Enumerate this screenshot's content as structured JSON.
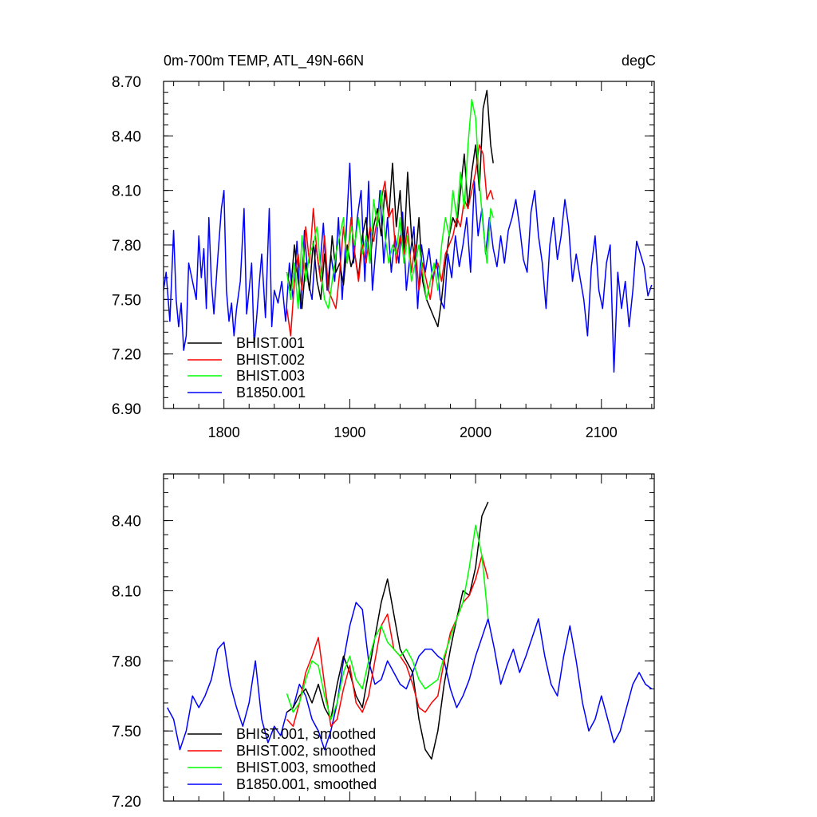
{
  "chart_data": [
    {
      "type": "line",
      "title_left": "0m-700m TEMP, ATL_49N-66N",
      "title_right": "degC",
      "xlim": [
        1752,
        2142
      ],
      "ylim": [
        6.9,
        8.7
      ],
      "x_ticks": [
        1800,
        1900,
        2000,
        2100
      ],
      "x_tick_labels": [
        "1800",
        "1900",
        "2000",
        "2100"
      ],
      "y_ticks": [
        6.9,
        7.2,
        7.5,
        7.8,
        8.1,
        8.4,
        8.7
      ],
      "y_tick_labels": [
        "6.90",
        "7.20",
        "7.50",
        "7.80",
        "8.10",
        "8.40",
        "8.70"
      ],
      "legend_position": "bottom-left",
      "series": [
        {
          "name": "B1850.001",
          "color": "#0000ff",
          "x": [
            1752,
            1754,
            1757,
            1760,
            1762,
            1764,
            1766,
            1768,
            1770,
            1772,
            1775,
            1778,
            1780,
            1782,
            1784,
            1786,
            1788,
            1790,
            1792,
            1795,
            1798,
            1800,
            1802,
            1804,
            1806,
            1808,
            1810,
            1813,
            1816,
            1818,
            1820,
            1822,
            1824,
            1826,
            1828,
            1830,
            1833,
            1836,
            1838,
            1840,
            1843,
            1846,
            1849,
            1852,
            1855,
            1858,
            1861,
            1864,
            1867,
            1870,
            1873,
            1876,
            1879,
            1882,
            1885,
            1888,
            1891,
            1894,
            1897,
            1900,
            1903,
            1906,
            1909,
            1912,
            1915,
            1918,
            1921,
            1924,
            1927,
            1930,
            1933,
            1936,
            1939,
            1942,
            1945,
            1948,
            1951,
            1954,
            1957,
            1960,
            1963,
            1966,
            1969,
            1972,
            1975,
            1978,
            1981,
            1984,
            1987,
            1990,
            1993,
            1996,
            1999,
            2002,
            2005,
            2008,
            2011,
            2014,
            2017,
            2020,
            2023,
            2026,
            2029,
            2032,
            2035,
            2038,
            2041,
            2044,
            2047,
            2050,
            2053,
            2056,
            2059,
            2062,
            2065,
            2068,
            2071,
            2074,
            2077,
            2080,
            2083,
            2086,
            2089,
            2092,
            2095,
            2098,
            2101,
            2104,
            2107,
            2110,
            2113,
            2116,
            2119,
            2122,
            2125,
            2128,
            2131,
            2134,
            2137,
            2140
          ],
          "values": [
            7.55,
            7.65,
            7.38,
            7.88,
            7.5,
            7.35,
            7.48,
            7.22,
            7.3,
            7.7,
            7.6,
            7.5,
            7.85,
            7.62,
            7.78,
            7.45,
            7.95,
            7.6,
            7.42,
            7.72,
            8.0,
            8.1,
            7.55,
            7.38,
            7.48,
            7.3,
            7.45,
            7.6,
            8.0,
            7.42,
            7.55,
            7.7,
            7.25,
            7.4,
            7.58,
            7.75,
            7.4,
            8.0,
            7.35,
            7.55,
            7.48,
            7.6,
            7.38,
            7.7,
            7.5,
            7.82,
            7.45,
            7.88,
            7.6,
            7.5,
            7.8,
            7.65,
            7.92,
            7.55,
            7.75,
            7.6,
            7.95,
            7.5,
            7.85,
            8.25,
            7.7,
            7.95,
            8.1,
            7.6,
            8.15,
            7.55,
            7.8,
            8.1,
            7.7,
            7.95,
            7.65,
            7.85,
            7.7,
            7.98,
            7.55,
            7.75,
            7.9,
            7.45,
            7.8,
            7.65,
            7.78,
            7.6,
            7.72,
            7.5,
            7.45,
            7.75,
            7.62,
            7.85,
            7.68,
            7.8,
            7.95,
            7.65,
            8.15,
            7.85,
            8.0,
            7.75,
            7.95,
            7.78,
            7.68,
            7.85,
            7.7,
            7.88,
            7.95,
            8.05,
            7.9,
            7.72,
            7.65,
            7.98,
            8.1,
            7.85,
            7.7,
            7.45,
            7.8,
            7.95,
            7.72,
            7.85,
            8.05,
            7.9,
            7.6,
            7.75,
            7.62,
            7.5,
            7.3,
            7.68,
            7.85,
            7.55,
            7.45,
            7.7,
            7.8,
            7.1,
            7.65,
            7.45,
            7.6,
            7.35,
            7.55,
            7.82,
            7.75,
            7.68,
            7.52,
            7.58
          ]
        },
        {
          "name": "BHIST.001",
          "color": "#000000",
          "x": [
            1850,
            1853,
            1856,
            1859,
            1862,
            1865,
            1868,
            1871,
            1874,
            1877,
            1880,
            1883,
            1886,
            1889,
            1892,
            1895,
            1898,
            1901,
            1904,
            1907,
            1910,
            1913,
            1916,
            1919,
            1922,
            1925,
            1928,
            1931,
            1934,
            1937,
            1940,
            1943,
            1946,
            1949,
            1952,
            1955,
            1958,
            1961,
            1964,
            1967,
            1970,
            1973,
            1976,
            1979,
            1982,
            1985,
            1988,
            1991,
            1994,
            1997,
            2000,
            2003,
            2006,
            2009,
            2012,
            2014
          ],
          "values": [
            7.65,
            7.55,
            7.8,
            7.6,
            7.45,
            7.7,
            7.55,
            7.82,
            7.6,
            7.5,
            7.75,
            7.55,
            7.85,
            7.65,
            7.7,
            7.58,
            7.8,
            7.68,
            7.75,
            7.62,
            7.85,
            7.95,
            7.7,
            7.9,
            8.0,
            7.85,
            8.1,
            7.95,
            8.25,
            7.9,
            8.1,
            7.75,
            8.2,
            7.85,
            7.7,
            7.95,
            7.6,
            7.5,
            7.45,
            7.4,
            7.35,
            7.5,
            7.7,
            7.85,
            7.95,
            7.9,
            8.1,
            8.3,
            8.0,
            8.2,
            8.35,
            8.1,
            8.55,
            8.65,
            8.35,
            8.25
          ]
        },
        {
          "name": "BHIST.002",
          "color": "#ff0000",
          "x": [
            1850,
            1853,
            1856,
            1859,
            1862,
            1865,
            1868,
            1871,
            1874,
            1877,
            1880,
            1883,
            1886,
            1889,
            1892,
            1895,
            1898,
            1901,
            1904,
            1907,
            1910,
            1913,
            1916,
            1919,
            1922,
            1925,
            1928,
            1931,
            1934,
            1937,
            1940,
            1943,
            1946,
            1949,
            1952,
            1955,
            1958,
            1961,
            1964,
            1967,
            1970,
            1973,
            1976,
            1979,
            1982,
            1985,
            1988,
            1991,
            1994,
            1997,
            2000,
            2003,
            2006,
            2009,
            2012,
            2014
          ],
          "values": [
            7.45,
            7.3,
            7.6,
            7.75,
            7.55,
            7.9,
            7.7,
            8.0,
            7.75,
            7.6,
            7.85,
            7.55,
            7.5,
            7.45,
            7.65,
            7.9,
            7.7,
            7.95,
            7.75,
            7.6,
            7.8,
            7.7,
            7.9,
            7.82,
            7.95,
            8.05,
            8.15,
            7.95,
            8.0,
            7.7,
            7.85,
            7.75,
            7.9,
            7.65,
            7.8,
            7.55,
            7.7,
            7.6,
            7.5,
            7.65,
            7.7,
            7.6,
            7.75,
            7.8,
            7.85,
            7.95,
            7.9,
            8.05,
            8.0,
            8.1,
            8.2,
            8.35,
            8.3,
            8.05,
            8.1,
            8.05
          ]
        },
        {
          "name": "BHIST.003",
          "color": "#00ff00",
          "x": [
            1850,
            1853,
            1856,
            1859,
            1862,
            1865,
            1868,
            1871,
            1874,
            1877,
            1880,
            1883,
            1886,
            1889,
            1892,
            1895,
            1898,
            1901,
            1904,
            1907,
            1910,
            1913,
            1916,
            1919,
            1922,
            1925,
            1928,
            1931,
            1934,
            1937,
            1940,
            1943,
            1946,
            1949,
            1952,
            1955,
            1958,
            1961,
            1964,
            1967,
            1970,
            1973,
            1976,
            1979,
            1982,
            1985,
            1988,
            1991,
            1994,
            1997,
            2000,
            2003,
            2006,
            2009,
            2012,
            2014
          ],
          "values": [
            7.65,
            7.5,
            7.7,
            7.45,
            7.85,
            7.6,
            7.75,
            7.8,
            7.9,
            7.65,
            7.5,
            7.45,
            7.6,
            7.75,
            7.85,
            7.95,
            7.7,
            7.9,
            7.8,
            7.95,
            7.75,
            7.85,
            7.7,
            8.05,
            7.9,
            8.1,
            7.85,
            7.7,
            7.8,
            7.75,
            7.95,
            7.7,
            7.85,
            7.6,
            7.7,
            7.8,
            7.65,
            7.5,
            7.6,
            7.7,
            7.55,
            7.8,
            7.95,
            7.85,
            8.1,
            7.95,
            8.2,
            8.0,
            8.35,
            8.6,
            8.5,
            8.15,
            7.9,
            7.7,
            8.0,
            7.95
          ]
        }
      ]
    },
    {
      "type": "line",
      "xlim": [
        1752,
        2142
      ],
      "ylim": [
        7.2,
        8.6
      ],
      "x_ticks": [
        1800,
        1900,
        2000,
        2100
      ],
      "y_ticks": [
        7.2,
        7.5,
        7.8,
        8.1,
        8.4
      ],
      "y_tick_labels": [
        "7.20",
        "7.50",
        "7.80",
        "8.10",
        "8.40"
      ],
      "legend_position": "bottom-left",
      "series": [
        {
          "name": "B1850.001, smoothed",
          "color": "#0000ff",
          "x": [
            1755,
            1760,
            1765,
            1770,
            1775,
            1780,
            1785,
            1790,
            1795,
            1800,
            1805,
            1810,
            1815,
            1820,
            1825,
            1830,
            1835,
            1840,
            1845,
            1850,
            1855,
            1860,
            1865,
            1870,
            1875,
            1880,
            1885,
            1890,
            1895,
            1900,
            1905,
            1910,
            1915,
            1920,
            1925,
            1930,
            1935,
            1940,
            1945,
            1950,
            1955,
            1960,
            1965,
            1970,
            1975,
            1980,
            1985,
            1990,
            1995,
            2000,
            2005,
            2010,
            2015,
            2020,
            2025,
            2030,
            2035,
            2040,
            2045,
            2050,
            2055,
            2060,
            2065,
            2070,
            2075,
            2080,
            2085,
            2090,
            2095,
            2100,
            2105,
            2110,
            2115,
            2120,
            2125,
            2130,
            2135,
            2140
          ],
          "values": [
            7.6,
            7.55,
            7.42,
            7.5,
            7.65,
            7.6,
            7.65,
            7.72,
            7.85,
            7.88,
            7.7,
            7.6,
            7.52,
            7.62,
            7.8,
            7.55,
            7.45,
            7.52,
            7.48,
            7.58,
            7.6,
            7.7,
            7.65,
            7.55,
            7.5,
            7.42,
            7.5,
            7.62,
            7.8,
            7.95,
            8.05,
            8.02,
            7.8,
            7.7,
            7.72,
            7.8,
            7.75,
            7.7,
            7.68,
            7.75,
            7.82,
            7.85,
            7.85,
            7.82,
            7.8,
            7.68,
            7.6,
            7.65,
            7.72,
            7.82,
            7.9,
            7.98,
            7.85,
            7.7,
            7.78,
            7.85,
            7.75,
            7.82,
            7.9,
            7.98,
            7.82,
            7.7,
            7.65,
            7.82,
            7.95,
            7.8,
            7.62,
            7.5,
            7.55,
            7.65,
            7.55,
            7.45,
            7.5,
            7.6,
            7.7,
            7.75,
            7.7,
            7.68
          ]
        },
        {
          "name": "BHIST.001, smoothed",
          "color": "#000000",
          "x": [
            1850,
            1855,
            1860,
            1865,
            1870,
            1875,
            1880,
            1885,
            1890,
            1895,
            1900,
            1905,
            1910,
            1915,
            1920,
            1925,
            1930,
            1935,
            1940,
            1945,
            1950,
            1955,
            1960,
            1965,
            1970,
            1975,
            1980,
            1985,
            1990,
            1995,
            2000,
            2005,
            2010
          ],
          "values": [
            7.58,
            7.6,
            7.65,
            7.68,
            7.62,
            7.7,
            7.6,
            7.55,
            7.7,
            7.82,
            7.75,
            7.65,
            7.6,
            7.75,
            7.9,
            8.05,
            8.15,
            8.0,
            7.85,
            7.8,
            7.75,
            7.55,
            7.42,
            7.38,
            7.5,
            7.7,
            7.85,
            7.98,
            8.1,
            8.08,
            8.2,
            8.42,
            8.48
          ]
        },
        {
          "name": "BHIST.002, smoothed",
          "color": "#ff0000",
          "x": [
            1850,
            1855,
            1860,
            1865,
            1870,
            1875,
            1880,
            1885,
            1890,
            1895,
            1900,
            1905,
            1910,
            1915,
            1920,
            1925,
            1930,
            1935,
            1940,
            1945,
            1950,
            1955,
            1960,
            1965,
            1970,
            1975,
            1980,
            1985,
            1990,
            1995,
            2000,
            2005,
            2010
          ],
          "values": [
            7.55,
            7.52,
            7.62,
            7.75,
            7.82,
            7.9,
            7.7,
            7.52,
            7.55,
            7.68,
            7.78,
            7.62,
            7.58,
            7.65,
            7.8,
            7.95,
            8.0,
            7.85,
            7.82,
            7.78,
            7.7,
            7.6,
            7.58,
            7.62,
            7.65,
            7.8,
            7.92,
            7.98,
            8.05,
            8.08,
            8.15,
            8.25,
            8.15
          ]
        },
        {
          "name": "BHIST.003, smoothed",
          "color": "#00ff00",
          "x": [
            1850,
            1855,
            1860,
            1865,
            1870,
            1875,
            1880,
            1885,
            1890,
            1895,
            1900,
            1905,
            1910,
            1915,
            1920,
            1925,
            1930,
            1935,
            1940,
            1945,
            1950,
            1955,
            1960,
            1965,
            1970,
            1975,
            1980,
            1985,
            1990,
            1995,
            2000,
            2005,
            2010
          ],
          "values": [
            7.66,
            7.58,
            7.62,
            7.72,
            7.8,
            7.78,
            7.65,
            7.55,
            7.62,
            7.75,
            7.82,
            7.72,
            7.68,
            7.8,
            7.9,
            7.95,
            7.88,
            7.85,
            7.82,
            7.85,
            7.8,
            7.72,
            7.68,
            7.7,
            7.72,
            7.82,
            7.9,
            7.98,
            8.05,
            8.2,
            8.38,
            8.25,
            7.98
          ]
        }
      ]
    }
  ]
}
